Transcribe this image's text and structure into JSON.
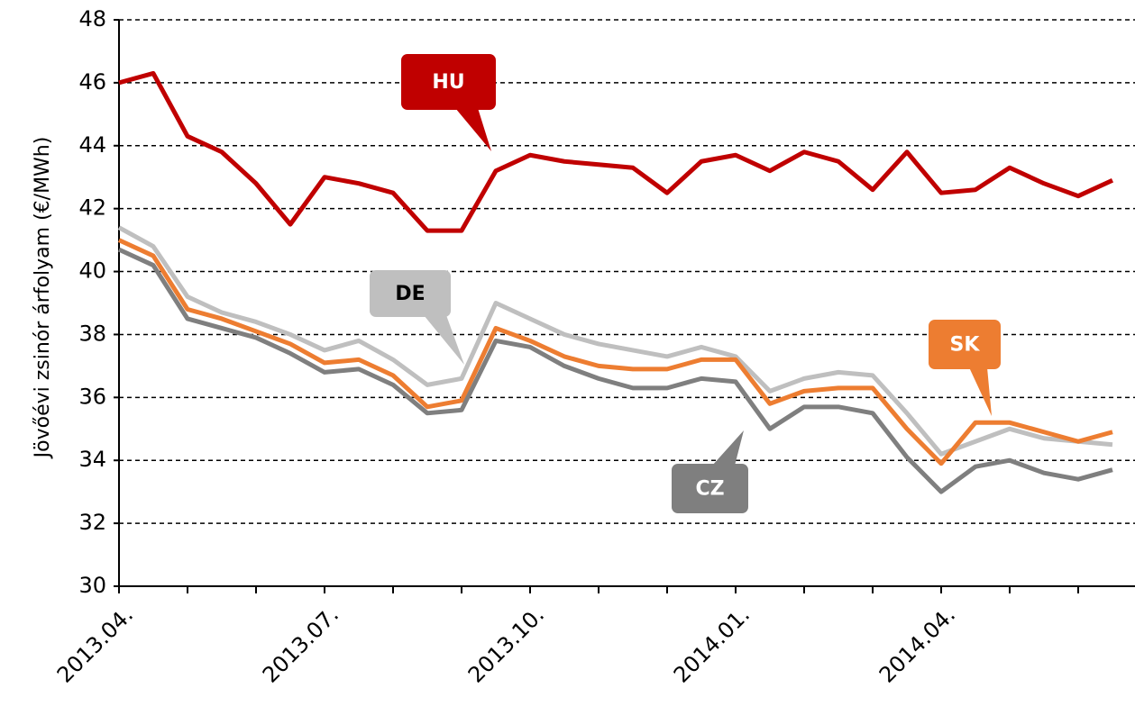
{
  "chart_data": {
    "type": "line",
    "y_label": "Jövőévi zsinór árfolyam (€/MWh)",
    "x": [
      "2013.04.",
      null,
      null,
      null,
      null,
      null,
      "2013.07.",
      null,
      null,
      null,
      null,
      null,
      "2013.10.",
      null,
      null,
      null,
      null,
      null,
      "2014.01.",
      null,
      null,
      null,
      null,
      null,
      "2014.04.",
      null,
      null,
      null,
      null,
      null
    ],
    "series": [
      {
        "name": "HU",
        "color": "#c00000",
        "values": [
          46.0,
          46.3,
          44.3,
          43.8,
          42.8,
          41.5,
          43.0,
          42.8,
          42.5,
          41.3,
          41.3,
          43.2,
          43.7,
          43.5,
          43.4,
          43.3,
          42.5,
          43.5,
          43.7,
          43.2,
          43.8,
          43.5,
          42.6,
          43.8,
          42.5,
          42.6,
          43.3,
          42.8,
          42.4,
          42.9
        ]
      },
      {
        "name": "DE",
        "color": "#bfbfbf",
        "values": [
          41.4,
          40.8,
          39.2,
          38.7,
          38.4,
          38.0,
          37.5,
          37.8,
          37.2,
          36.4,
          36.6,
          39.0,
          38.5,
          38.0,
          37.7,
          37.5,
          37.3,
          37.6,
          37.3,
          36.2,
          36.6,
          36.8,
          36.7,
          35.5,
          34.2,
          34.6,
          35.0,
          34.7,
          34.6,
          34.5
        ]
      },
      {
        "name": "SK",
        "color": "#ed7d31",
        "values": [
          41.0,
          40.5,
          38.8,
          38.5,
          38.1,
          37.7,
          37.1,
          37.2,
          36.7,
          35.7,
          35.9,
          38.2,
          37.8,
          37.3,
          37.0,
          36.9,
          36.9,
          37.2,
          37.2,
          35.8,
          36.2,
          36.3,
          36.3,
          35.0,
          33.9,
          35.2,
          35.2,
          34.9,
          34.6,
          34.9
        ]
      },
      {
        "name": "CZ",
        "color": "#7f7f7f",
        "values": [
          40.7,
          40.2,
          38.5,
          38.2,
          37.9,
          37.4,
          36.8,
          36.9,
          36.4,
          35.5,
          35.6,
          37.8,
          37.6,
          37.0,
          36.6,
          36.3,
          36.3,
          36.6,
          36.5,
          35.0,
          35.7,
          35.7,
          35.5,
          34.1,
          33.0,
          33.8,
          34.0,
          33.6,
          33.4,
          33.7
        ]
      }
    ],
    "ylim": [
      30,
      48
    ],
    "yticks": [
      30,
      32,
      34,
      36,
      38,
      40,
      42,
      44,
      46,
      48
    ],
    "grid": true
  }
}
